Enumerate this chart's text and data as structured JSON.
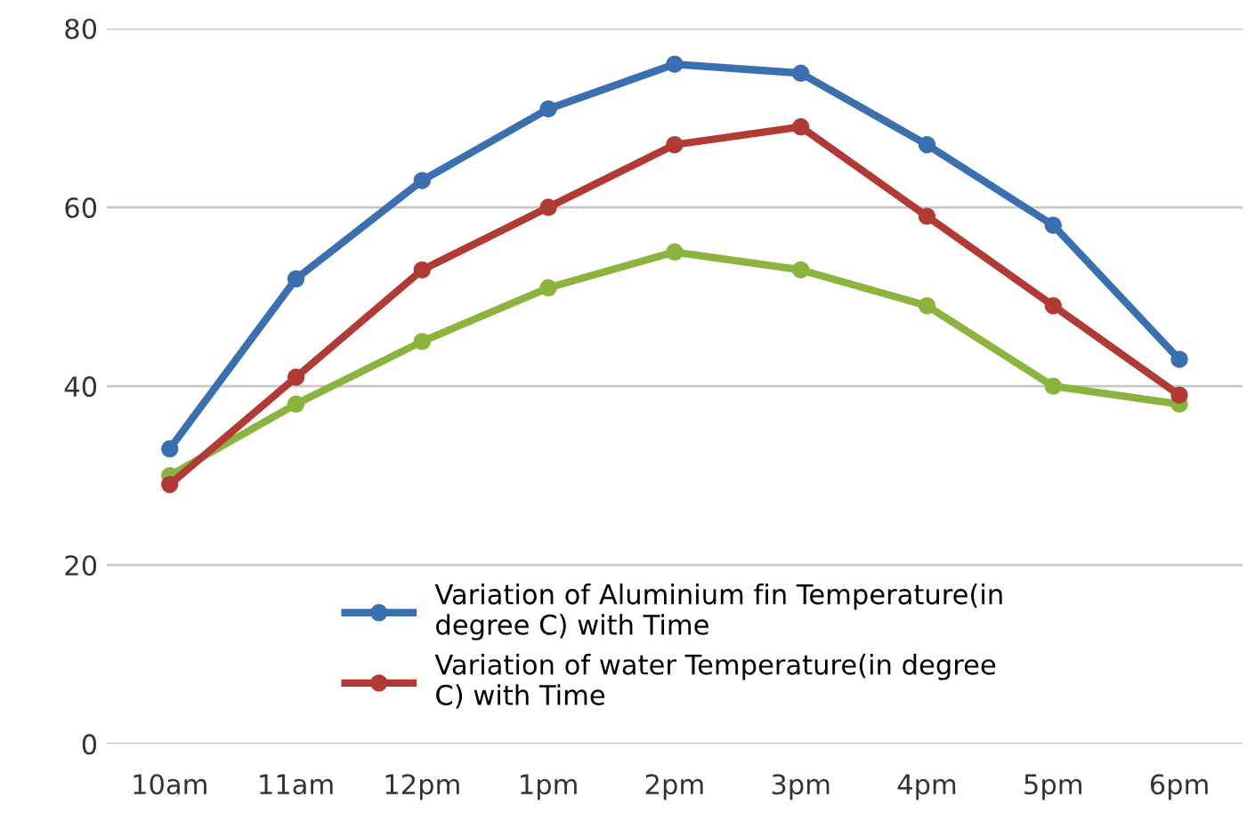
{
  "chart_data": {
    "type": "line",
    "categories": [
      "10am",
      "11am",
      "12pm",
      "1pm",
      "2pm",
      "3pm",
      "4pm",
      "5pm",
      "6pm"
    ],
    "series": [
      {
        "name": "Variation of Aluminium fin Temperature(in degree C) with Time",
        "color": "#3a6fb0",
        "values": [
          33,
          52,
          63,
          71,
          76,
          75,
          67,
          58,
          43
        ]
      },
      {
        "name": "Variation of water Temperature(in degree C) with Time",
        "color": "#b23a34",
        "values": [
          29,
          41,
          53,
          60,
          67,
          69,
          59,
          49,
          39
        ]
      },
      {
        "color": "#8ab43e",
        "values": [
          30,
          38,
          45,
          51,
          55,
          53,
          49,
          40,
          38
        ]
      }
    ],
    "ylim": [
      0,
      80
    ],
    "yticks": [
      0,
      20,
      40,
      60,
      80
    ],
    "grid": "y",
    "legend": "bottom",
    "marker": "circle",
    "line_style": "solid"
  }
}
